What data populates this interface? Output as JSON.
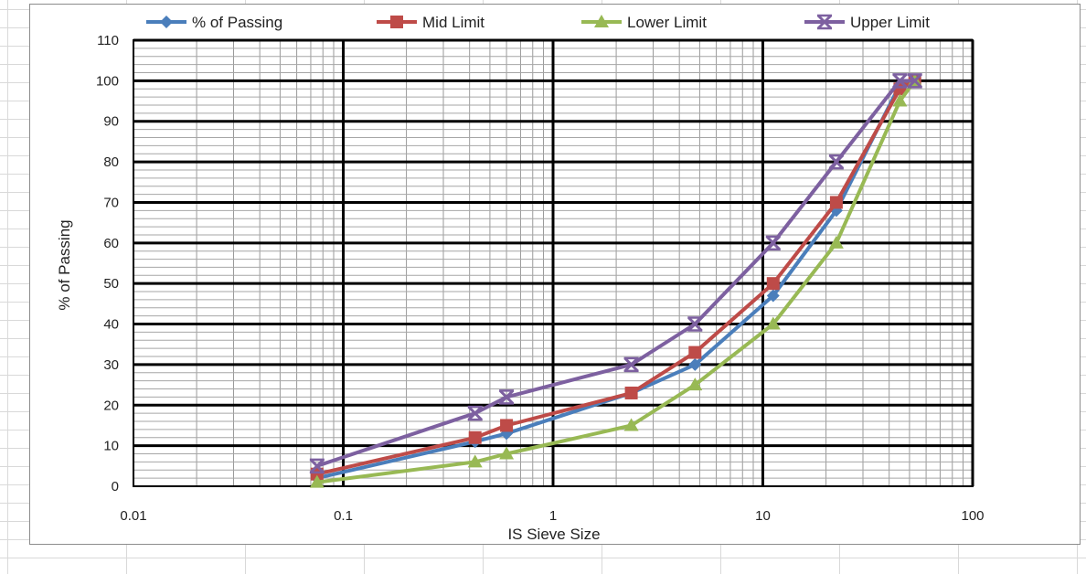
{
  "chart_data": {
    "type": "line",
    "xscale": "log",
    "xlim": [
      0.01,
      100
    ],
    "ylim": [
      0,
      110
    ],
    "xticks": [
      "0.01",
      "0.1",
      "1",
      "10",
      "100"
    ],
    "yticks": [
      "0",
      "10",
      "20",
      "30",
      "40",
      "50",
      "60",
      "70",
      "80",
      "90",
      "100",
      "110"
    ],
    "xlabel": "IS Sieve Size",
    "ylabel": "% of Passing",
    "grid": true,
    "legend": "top",
    "series": [
      {
        "name": "% of Passing",
        "color": "#4a7ebb",
        "marker": "diamond",
        "points": [
          [
            0.075,
            2
          ],
          [
            0.425,
            11
          ],
          [
            0.6,
            13
          ],
          [
            2.36,
            23
          ],
          [
            4.75,
            30
          ],
          [
            11.2,
            47
          ],
          [
            22.4,
            68
          ],
          [
            45,
            99
          ],
          [
            53,
            100
          ]
        ]
      },
      {
        "name": "Mid Limit",
        "color": "#be4b48",
        "marker": "square",
        "points": [
          [
            0.075,
            3
          ],
          [
            0.425,
            12
          ],
          [
            0.6,
            15
          ],
          [
            2.36,
            23
          ],
          [
            4.75,
            33
          ],
          [
            11.2,
            50
          ],
          [
            22.4,
            70
          ],
          [
            45,
            98
          ],
          [
            53,
            100
          ]
        ]
      },
      {
        "name": "Lower Limit",
        "color": "#98b954",
        "marker": "triangle",
        "points": [
          [
            0.075,
            1
          ],
          [
            0.425,
            6
          ],
          [
            0.6,
            8
          ],
          [
            2.36,
            15
          ],
          [
            4.75,
            25
          ],
          [
            11.2,
            40
          ],
          [
            22.4,
            60
          ],
          [
            45,
            95
          ],
          [
            53,
            100
          ]
        ]
      },
      {
        "name": "Upper Limit",
        "color": "#7d60a0",
        "marker": "star",
        "points": [
          [
            0.075,
            5
          ],
          [
            0.425,
            18
          ],
          [
            0.6,
            22
          ],
          [
            2.36,
            30
          ],
          [
            4.75,
            40
          ],
          [
            11.2,
            60
          ],
          [
            22.4,
            80
          ],
          [
            45,
            100
          ],
          [
            53,
            100
          ]
        ]
      }
    ]
  }
}
